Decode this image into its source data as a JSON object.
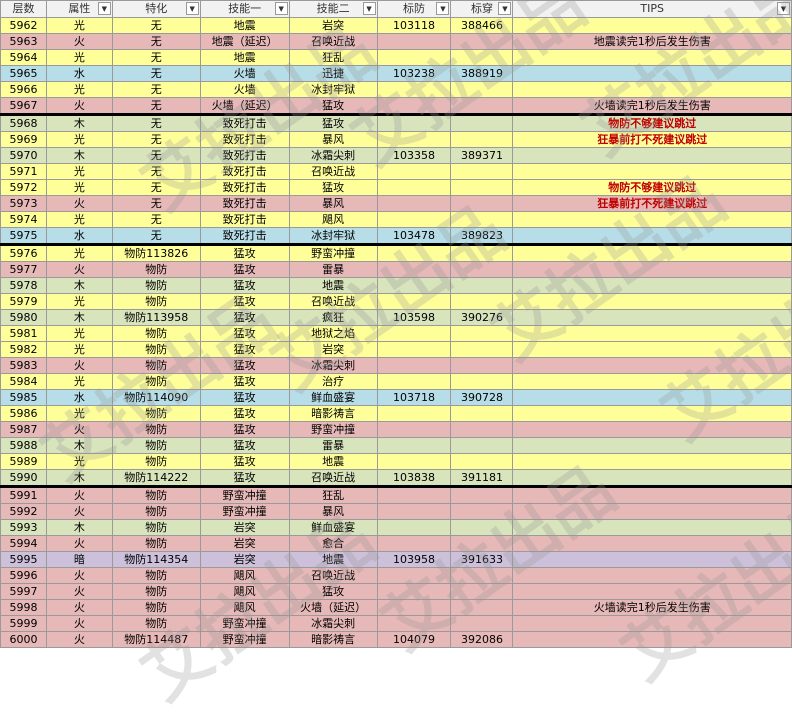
{
  "headers": [
    "层数",
    "属性",
    "特化",
    "技能一",
    "技能二",
    "标防",
    "标穿",
    "TIPS"
  ],
  "colors": {
    "yellow": "#ffff99",
    "pink": "#e6b8b7",
    "blue": "#b7dee8",
    "green": "#d8e4bc",
    "purple": "#ccc0da",
    "tip_red": "#c00000"
  },
  "watermark_text": "艾拉出品",
  "rows": [
    {
      "floor": "5962",
      "attr": "光",
      "spec": "无",
      "skill1": "地震",
      "skill2": "岩突",
      "def": "103118",
      "pen": "388466",
      "tip": "",
      "color": "yellow"
    },
    {
      "floor": "5963",
      "attr": "火",
      "spec": "无",
      "skill1": "地震（延迟）",
      "skill2": "召唤近战",
      "def": "",
      "pen": "",
      "tip": "地震读完1秒后发生伤害",
      "color": "pink"
    },
    {
      "floor": "5964",
      "attr": "光",
      "spec": "无",
      "skill1": "地震",
      "skill2": "狂乱",
      "def": "",
      "pen": "",
      "tip": "",
      "color": "yellow"
    },
    {
      "floor": "5965",
      "attr": "水",
      "spec": "无",
      "skill1": "火墙",
      "skill2": "迅捷",
      "def": "103238",
      "pen": "388919",
      "tip": "",
      "color": "blue"
    },
    {
      "floor": "5966",
      "attr": "光",
      "spec": "无",
      "skill1": "火墙",
      "skill2": "冰封牢狱",
      "def": "",
      "pen": "",
      "tip": "",
      "color": "yellow"
    },
    {
      "floor": "5967",
      "attr": "火",
      "spec": "无",
      "skill1": "火墙（延迟）",
      "skill2": "猛攻",
      "def": "",
      "pen": "",
      "tip": "火墙读完1秒后发生伤害",
      "color": "pink"
    },
    {
      "floor": "5968",
      "attr": "木",
      "spec": "无",
      "skill1": "致死打击",
      "skill2": "猛攻",
      "def": "",
      "pen": "",
      "tip": "物防不够建议跳过",
      "color": "green",
      "red": true,
      "sep": true
    },
    {
      "floor": "5969",
      "attr": "光",
      "spec": "无",
      "skill1": "致死打击",
      "skill2": "暴风",
      "def": "",
      "pen": "",
      "tip": "狂暴前打不死建议跳过",
      "color": "yellow",
      "red": true
    },
    {
      "floor": "5970",
      "attr": "木",
      "spec": "无",
      "skill1": "致死打击",
      "skill2": "冰霜尖刺",
      "def": "103358",
      "pen": "389371",
      "tip": "",
      "color": "green"
    },
    {
      "floor": "5971",
      "attr": "光",
      "spec": "无",
      "skill1": "致死打击",
      "skill2": "召唤近战",
      "def": "",
      "pen": "",
      "tip": "",
      "color": "yellow"
    },
    {
      "floor": "5972",
      "attr": "光",
      "spec": "无",
      "skill1": "致死打击",
      "skill2": "猛攻",
      "def": "",
      "pen": "",
      "tip": "物防不够建议跳过",
      "color": "yellow",
      "red": true
    },
    {
      "floor": "5973",
      "attr": "火",
      "spec": "无",
      "skill1": "致死打击",
      "skill2": "暴风",
      "def": "",
      "pen": "",
      "tip": "狂暴前打不死建议跳过",
      "color": "pink",
      "red": true
    },
    {
      "floor": "5974",
      "attr": "光",
      "spec": "无",
      "skill1": "致死打击",
      "skill2": "飓风",
      "def": "",
      "pen": "",
      "tip": "",
      "color": "yellow"
    },
    {
      "floor": "5975",
      "attr": "水",
      "spec": "无",
      "skill1": "致死打击",
      "skill2": "冰封牢狱",
      "def": "103478",
      "pen": "389823",
      "tip": "",
      "color": "blue"
    },
    {
      "floor": "5976",
      "attr": "光",
      "spec": "物防113826",
      "skill1": "猛攻",
      "skill2": "野蛮冲撞",
      "def": "",
      "pen": "",
      "tip": "",
      "color": "yellow",
      "sep": true
    },
    {
      "floor": "5977",
      "attr": "火",
      "spec": "物防",
      "skill1": "猛攻",
      "skill2": "雷暴",
      "def": "",
      "pen": "",
      "tip": "",
      "color": "pink"
    },
    {
      "floor": "5978",
      "attr": "木",
      "spec": "物防",
      "skill1": "猛攻",
      "skill2": "地震",
      "def": "",
      "pen": "",
      "tip": "",
      "color": "green"
    },
    {
      "floor": "5979",
      "attr": "光",
      "spec": "物防",
      "skill1": "猛攻",
      "skill2": "召唤近战",
      "def": "",
      "pen": "",
      "tip": "",
      "color": "yellow"
    },
    {
      "floor": "5980",
      "attr": "木",
      "spec": "物防113958",
      "skill1": "猛攻",
      "skill2": "疯狂",
      "def": "103598",
      "pen": "390276",
      "tip": "",
      "color": "green"
    },
    {
      "floor": "5981",
      "attr": "光",
      "spec": "物防",
      "skill1": "猛攻",
      "skill2": "地狱之焰",
      "def": "",
      "pen": "",
      "tip": "",
      "color": "yellow"
    },
    {
      "floor": "5982",
      "attr": "光",
      "spec": "物防",
      "skill1": "猛攻",
      "skill2": "岩突",
      "def": "",
      "pen": "",
      "tip": "",
      "color": "yellow"
    },
    {
      "floor": "5983",
      "attr": "火",
      "spec": "物防",
      "skill1": "猛攻",
      "skill2": "冰霜尖刺",
      "def": "",
      "pen": "",
      "tip": "",
      "color": "pink"
    },
    {
      "floor": "5984",
      "attr": "光",
      "spec": "物防",
      "skill1": "猛攻",
      "skill2": "治疗",
      "def": "",
      "pen": "",
      "tip": "",
      "color": "yellow"
    },
    {
      "floor": "5985",
      "attr": "水",
      "spec": "物防114090",
      "skill1": "猛攻",
      "skill2": "鲜血盛宴",
      "def": "103718",
      "pen": "390728",
      "tip": "",
      "color": "blue"
    },
    {
      "floor": "5986",
      "attr": "光",
      "spec": "物防",
      "skill1": "猛攻",
      "skill2": "暗影祷言",
      "def": "",
      "pen": "",
      "tip": "",
      "color": "yellow"
    },
    {
      "floor": "5987",
      "attr": "火",
      "spec": "物防",
      "skill1": "猛攻",
      "skill2": "野蛮冲撞",
      "def": "",
      "pen": "",
      "tip": "",
      "color": "pink"
    },
    {
      "floor": "5988",
      "attr": "木",
      "spec": "物防",
      "skill1": "猛攻",
      "skill2": "雷暴",
      "def": "",
      "pen": "",
      "tip": "",
      "color": "green"
    },
    {
      "floor": "5989",
      "attr": "光",
      "spec": "物防",
      "skill1": "猛攻",
      "skill2": "地震",
      "def": "",
      "pen": "",
      "tip": "",
      "color": "yellow"
    },
    {
      "floor": "5990",
      "attr": "木",
      "spec": "物防114222",
      "skill1": "猛攻",
      "skill2": "召唤近战",
      "def": "103838",
      "pen": "391181",
      "tip": "",
      "color": "green"
    },
    {
      "floor": "5991",
      "attr": "火",
      "spec": "物防",
      "skill1": "野蛮冲撞",
      "skill2": "狂乱",
      "def": "",
      "pen": "",
      "tip": "",
      "color": "pink",
      "sep": true
    },
    {
      "floor": "5992",
      "attr": "火",
      "spec": "物防",
      "skill1": "野蛮冲撞",
      "skill2": "暴风",
      "def": "",
      "pen": "",
      "tip": "",
      "color": "pink"
    },
    {
      "floor": "5993",
      "attr": "木",
      "spec": "物防",
      "skill1": "岩突",
      "skill2": "鲜血盛宴",
      "def": "",
      "pen": "",
      "tip": "",
      "color": "green"
    },
    {
      "floor": "5994",
      "attr": "火",
      "spec": "物防",
      "skill1": "岩突",
      "skill2": "愈合",
      "def": "",
      "pen": "",
      "tip": "",
      "color": "pink"
    },
    {
      "floor": "5995",
      "attr": "暗",
      "spec": "物防114354",
      "skill1": "岩突",
      "skill2": "地震",
      "def": "103958",
      "pen": "391633",
      "tip": "",
      "color": "purple"
    },
    {
      "floor": "5996",
      "attr": "火",
      "spec": "物防",
      "skill1": "飓风",
      "skill2": "召唤近战",
      "def": "",
      "pen": "",
      "tip": "",
      "color": "pink"
    },
    {
      "floor": "5997",
      "attr": "火",
      "spec": "物防",
      "skill1": "飓风",
      "skill2": "猛攻",
      "def": "",
      "pen": "",
      "tip": "",
      "color": "pink"
    },
    {
      "floor": "5998",
      "attr": "火",
      "spec": "物防",
      "skill1": "飓风",
      "skill2": "火墙（延迟）",
      "def": "",
      "pen": "",
      "tip": "火墙读完1秒后发生伤害",
      "color": "pink"
    },
    {
      "floor": "5999",
      "attr": "火",
      "spec": "物防",
      "skill1": "野蛮冲撞",
      "skill2": "冰霜尖刺",
      "def": "",
      "pen": "",
      "tip": "",
      "color": "pink"
    },
    {
      "floor": "6000",
      "attr": "火",
      "spec": "物防114487",
      "skill1": "野蛮冲撞",
      "skill2": "暗影祷言",
      "def": "104079",
      "pen": "392086",
      "tip": "",
      "color": "pink"
    }
  ]
}
